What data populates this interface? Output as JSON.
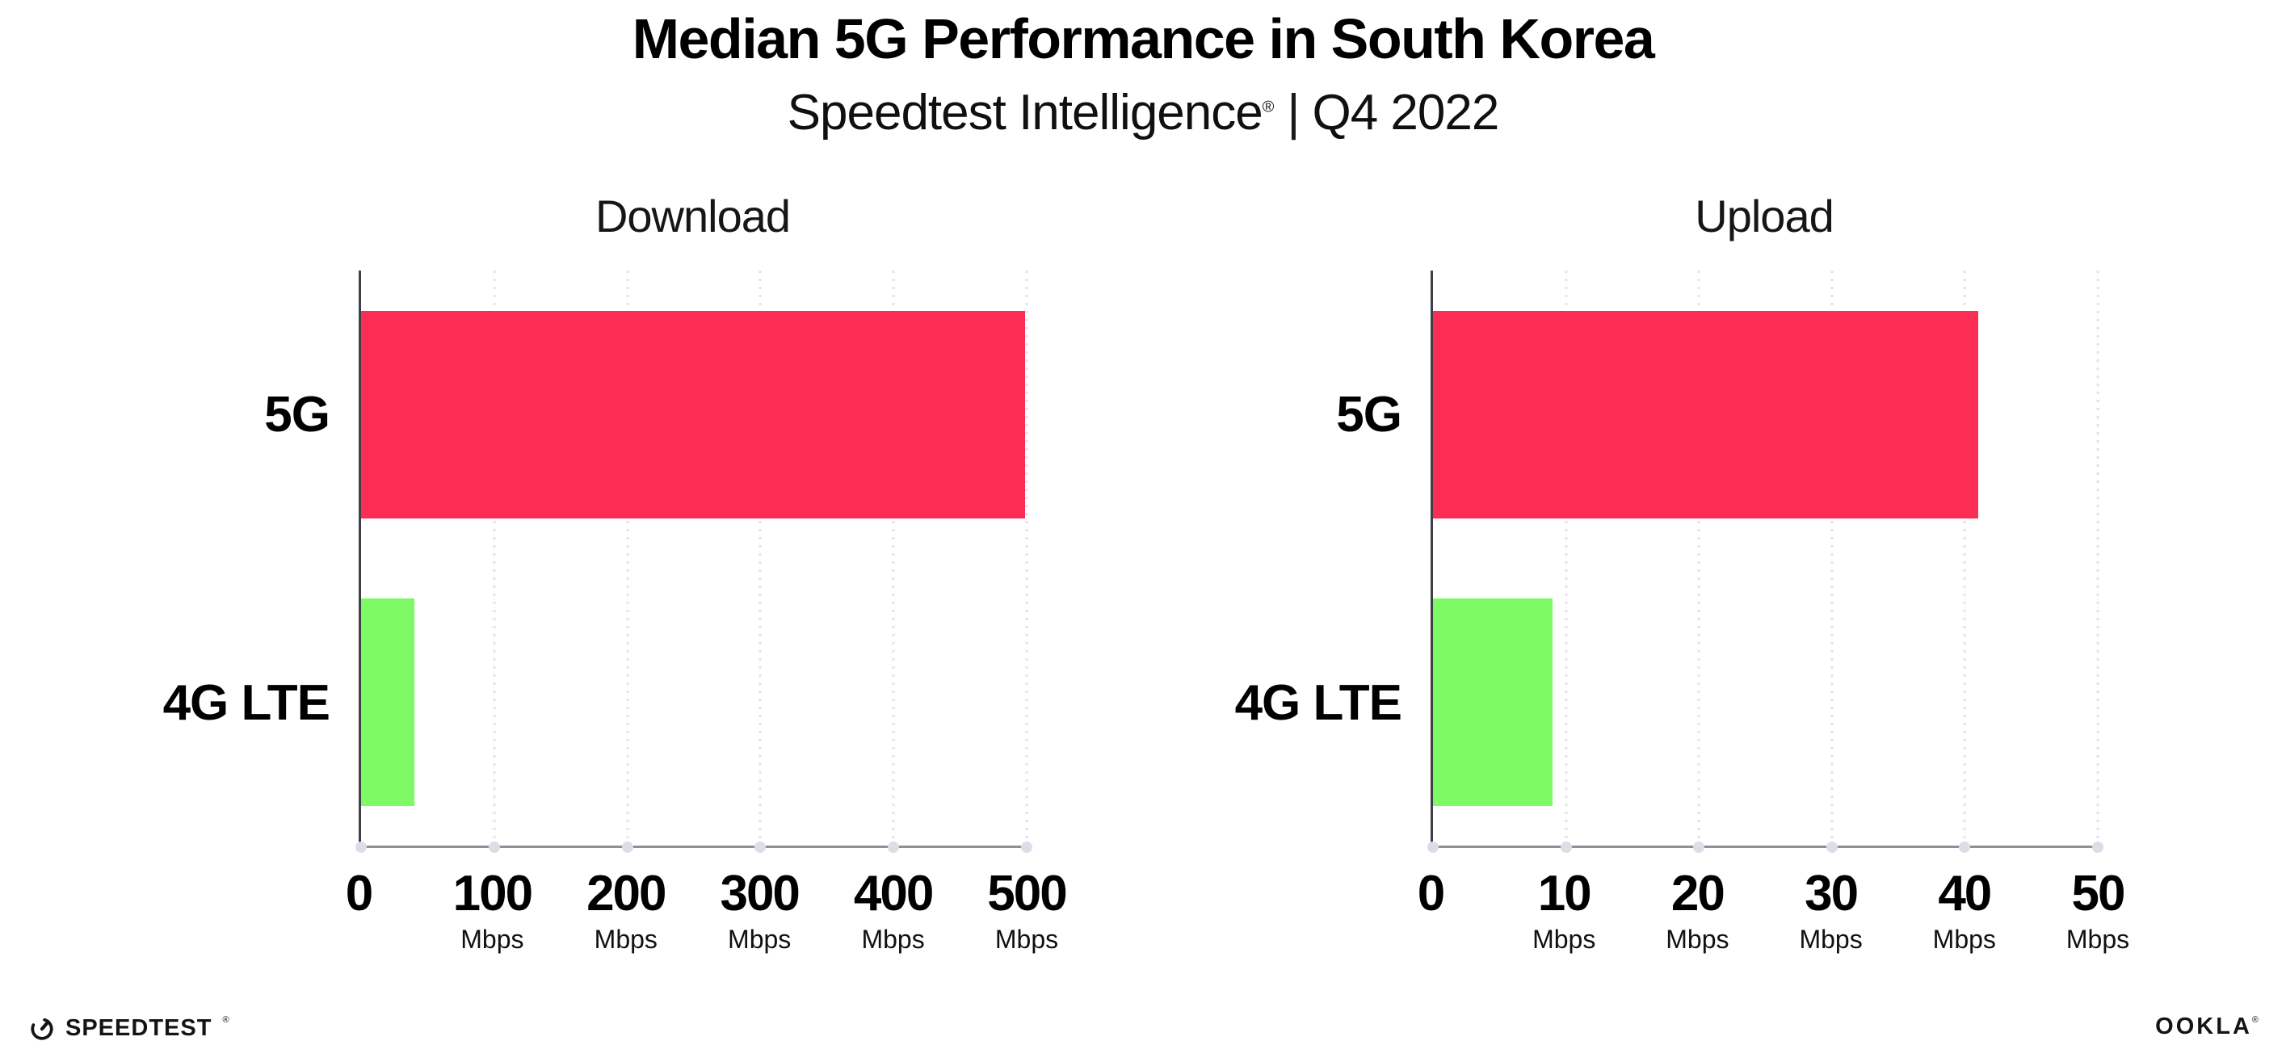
{
  "header": {
    "title": "Median 5G Performance in South Korea",
    "subtitle_brand": "Speedtest Intelligence",
    "subtitle_reg": "®",
    "subtitle_sep": "|",
    "subtitle_period": "Q4 2022"
  },
  "chart_data": [
    {
      "type": "bar",
      "orientation": "horizontal",
      "title": "Download",
      "categories": [
        "5G",
        "4G LTE"
      ],
      "values": [
        499,
        40
      ],
      "unit": "Mbps",
      "xlim": [
        0,
        500
      ],
      "xticks": [
        0,
        100,
        200,
        300,
        400,
        500
      ],
      "bar_colors": [
        "#FC2D55",
        "#7DFA66"
      ],
      "grid": "vertical-dotted",
      "legend": "none"
    },
    {
      "type": "bar",
      "orientation": "horizontal",
      "title": "Upload",
      "categories": [
        "5G",
        "4G LTE"
      ],
      "values": [
        41,
        9
      ],
      "unit": "Mbps",
      "xlim": [
        0,
        50
      ],
      "xticks": [
        0,
        10,
        20,
        30,
        40,
        50
      ],
      "bar_colors": [
        "#FC2D55",
        "#7DFA66"
      ],
      "grid": "vertical-dotted",
      "legend": "none"
    }
  ],
  "footer": {
    "speedtest_label": "SPEEDTEST",
    "speedtest_mark": "®",
    "ookla_label": "OOKLA",
    "ookla_mark": "®"
  },
  "colors": {
    "bar_5g": "#FC2D55",
    "bar_4g_lte": "#7DFA66",
    "y_axis_line": "#3E3E46",
    "x_axis_line": "#8F8F96",
    "grid_dot": "#E2E2EC",
    "tick_dot": "#DDDDE7",
    "text": "#000000",
    "background": "#FFFFFF"
  }
}
